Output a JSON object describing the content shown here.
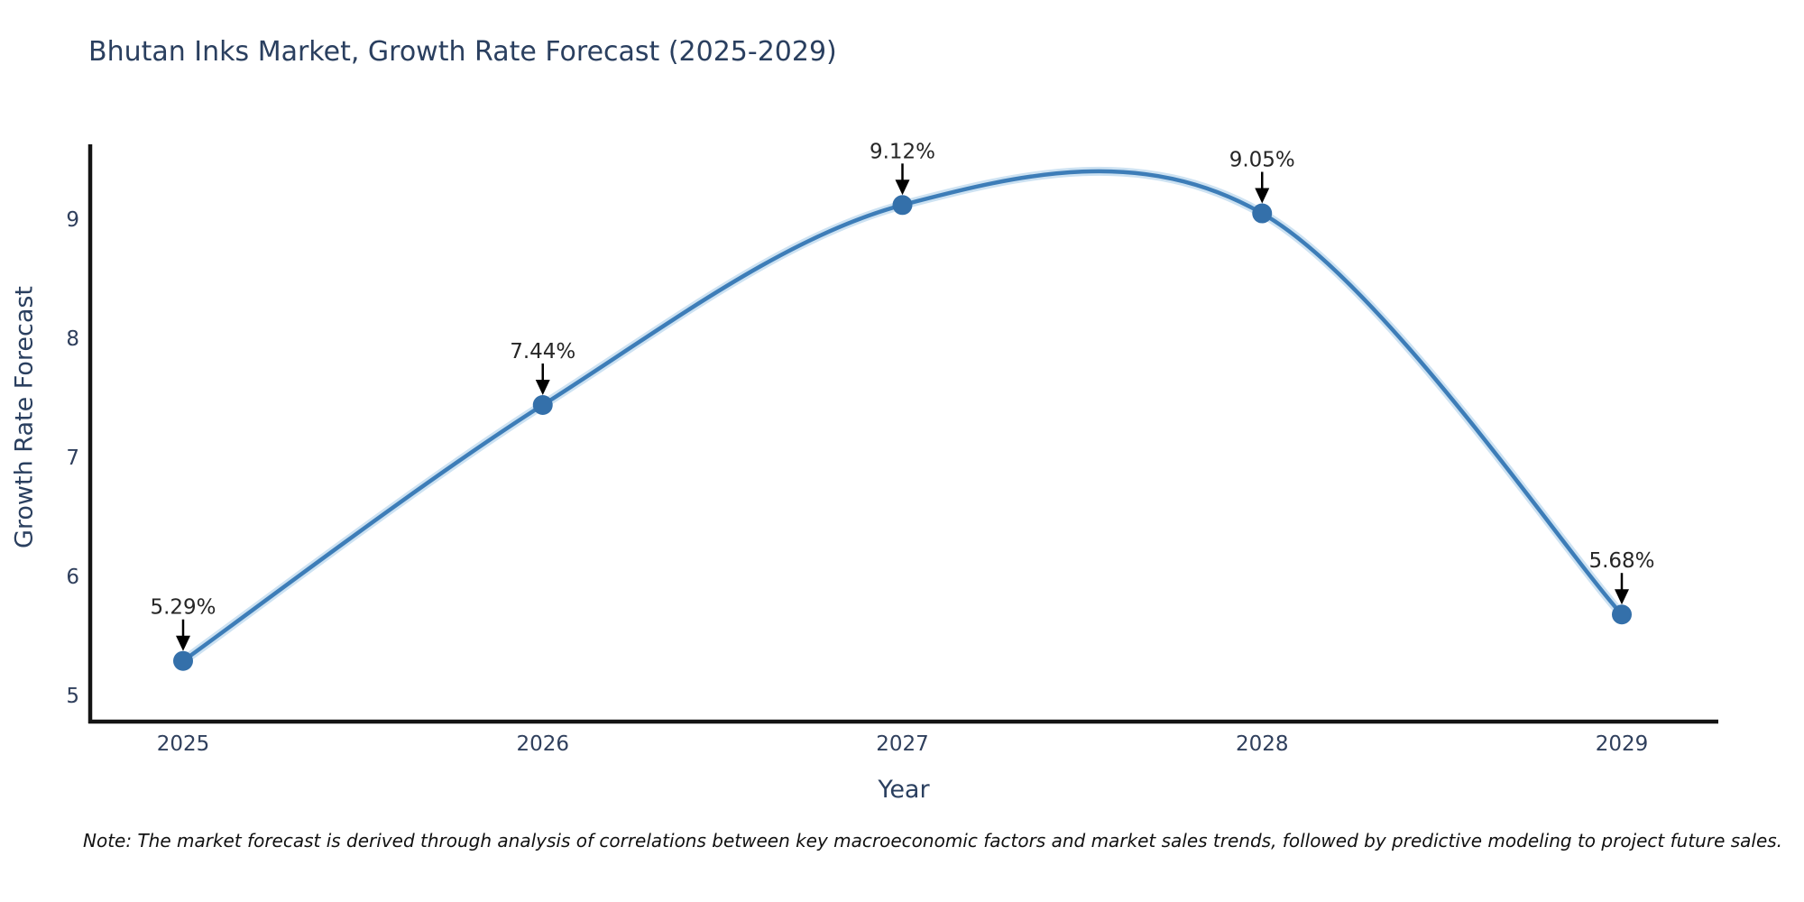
{
  "title": "Bhutan Inks Market, Growth Rate Forecast (2025-2029)",
  "note": "Note: The market forecast is derived through analysis of correlations between key macroeconomic factors and market sales trends, followed by predictive modeling to project future sales.",
  "chart_data": {
    "type": "line",
    "title": "Bhutan Inks Market, Growth Rate Forecast (2025-2029)",
    "xlabel": "Year",
    "ylabel": "Growth Rate Forecast",
    "categories": [
      "2025",
      "2026",
      "2027",
      "2028",
      "2029"
    ],
    "series": [
      {
        "name": "Growth Rate Forecast",
        "values": [
          5.29,
          7.44,
          9.12,
          9.05,
          5.68
        ]
      }
    ],
    "point_labels": [
      "5.29%",
      "7.44%",
      "9.12%",
      "9.05%",
      "5.68%"
    ],
    "yticks": [
      5,
      6,
      7,
      8,
      9
    ],
    "ylim": [
      4.78,
      9.63
    ],
    "line_shape": "spline",
    "grid": false,
    "legend_position": "none",
    "annotations": "down-arrow to each data point",
    "colors": {
      "line": "#3d7db8",
      "line_halo": "#cde2f2",
      "marker": "#3470aa",
      "axis": "#141414",
      "title_text": "#2a3f5f",
      "tick_text": "#2f3f5c",
      "annotation_text": "#262626",
      "arrow": "#000000",
      "note_text": "#111111",
      "background": "#ffffff"
    }
  }
}
